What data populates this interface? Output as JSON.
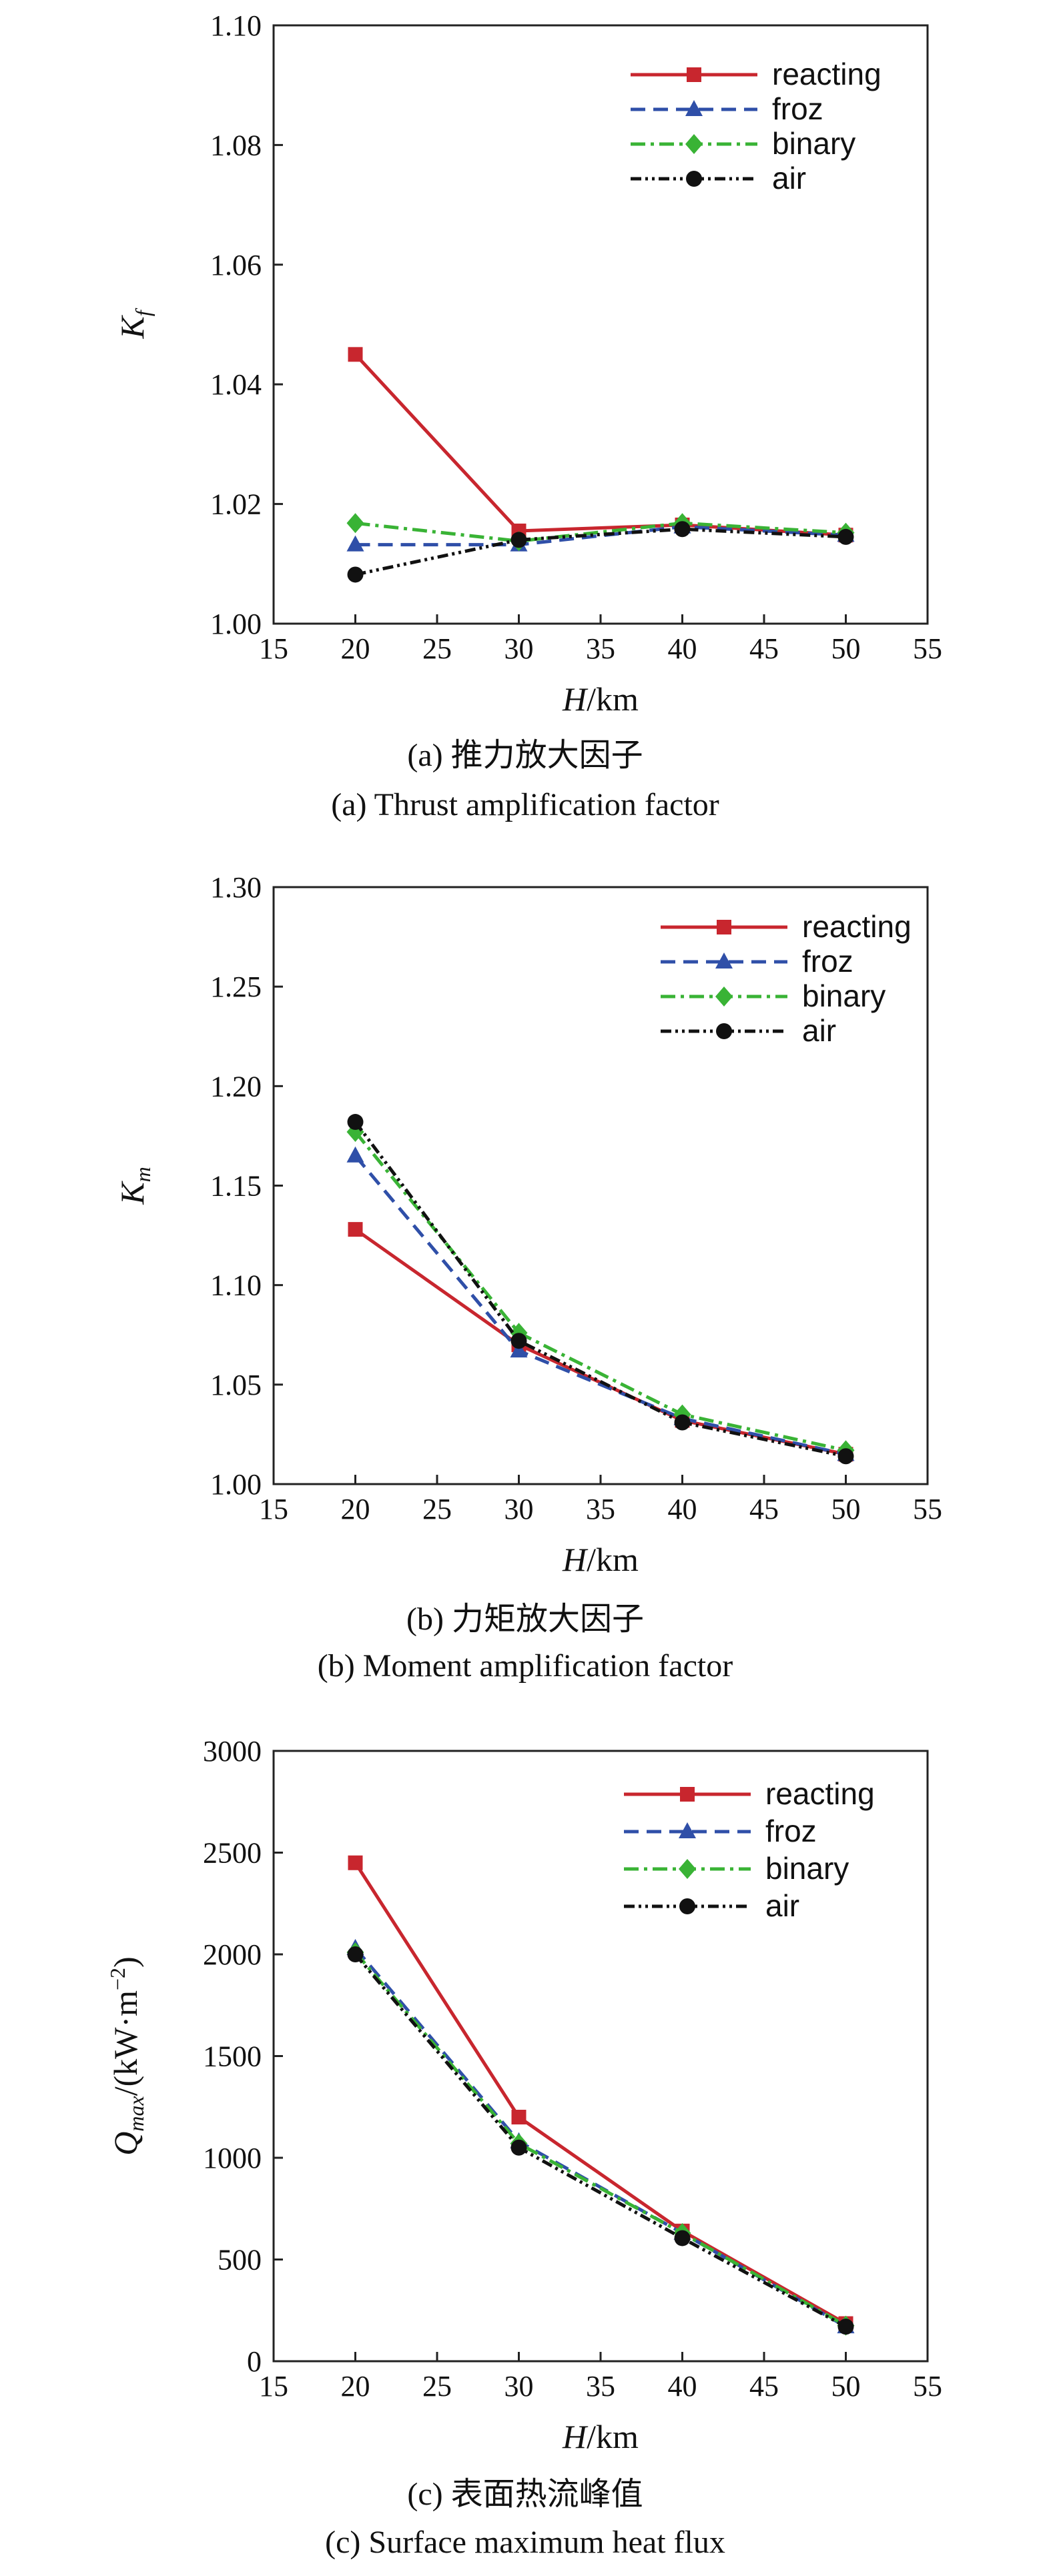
{
  "chart_data": [
    {
      "type": "line",
      "panel": "a",
      "ylabel_main": "K",
      "ylabel_sub": "f",
      "xlabel_main": "H",
      "xlabel_unit": "/km",
      "xlim": [
        15,
        55
      ],
      "ylim": [
        1.0,
        1.1
      ],
      "xticks": [
        "15",
        "20",
        "25",
        "30",
        "35",
        "40",
        "45",
        "50",
        "55"
      ],
      "yticks": [
        "1.00",
        "1.02",
        "1.04",
        "1.06",
        "1.08",
        "1.10"
      ],
      "caption_cn": "(a) 推力放大因子",
      "caption_en": "(a) Thrust amplification factor",
      "x": [
        20,
        30,
        40,
        50
      ],
      "series": [
        {
          "name": "reacting",
          "values": [
            1.045,
            1.0155,
            1.0165,
            1.0148
          ]
        },
        {
          "name": "froz",
          "values": [
            1.0132,
            1.0132,
            1.0162,
            1.0148
          ]
        },
        {
          "name": "binary",
          "values": [
            1.0168,
            1.0138,
            1.0168,
            1.0152
          ]
        },
        {
          "name": "air",
          "values": [
            1.0082,
            1.014,
            1.0158,
            1.0145
          ]
        }
      ]
    },
    {
      "type": "line",
      "panel": "b",
      "ylabel_main": "K",
      "ylabel_sub": "m",
      "xlabel_main": "H",
      "xlabel_unit": "/km",
      "xlim": [
        15,
        55
      ],
      "ylim": [
        1.0,
        1.3
      ],
      "xticks": [
        "15",
        "20",
        "25",
        "30",
        "35",
        "40",
        "45",
        "50",
        "55"
      ],
      "yticks": [
        "1.00",
        "1.05",
        "1.10",
        "1.15",
        "1.20",
        "1.25",
        "1.30"
      ],
      "caption_cn": "(b) 力矩放大因子",
      "caption_en": "(b) Moment amplification factor",
      "x": [
        20,
        30,
        40,
        50
      ],
      "series": [
        {
          "name": "reacting",
          "values": [
            1.128,
            1.07,
            1.032,
            1.015
          ]
        },
        {
          "name": "froz",
          "values": [
            1.165,
            1.067,
            1.033,
            1.015
          ]
        },
        {
          "name": "binary",
          "values": [
            1.177,
            1.076,
            1.035,
            1.017
          ]
        },
        {
          "name": "air",
          "values": [
            1.182,
            1.072,
            1.031,
            1.014
          ]
        }
      ]
    },
    {
      "type": "line",
      "panel": "c",
      "ylabel_main": "Q",
      "ylabel_sub": "max",
      "ylabel_unit_pre": "/(kW·m",
      "ylabel_unit_sup": "−2",
      "ylabel_unit_post": ")",
      "xlabel_main": "H",
      "xlabel_unit": "/km",
      "xlim": [
        15,
        55
      ],
      "ylim": [
        0,
        3000
      ],
      "xticks": [
        "15",
        "20",
        "25",
        "30",
        "35",
        "40",
        "45",
        "50",
        "55"
      ],
      "yticks": [
        "0",
        "500",
        "1000",
        "1500",
        "2000",
        "2500",
        "3000"
      ],
      "caption_cn": "(c) 表面热流峰值",
      "caption_en": "(c) Surface maximum heat flux",
      "x": [
        20,
        30,
        40,
        50
      ],
      "series": [
        {
          "name": "reacting",
          "values": [
            2450,
            1200,
            640,
            185
          ]
        },
        {
          "name": "froz",
          "values": [
            2030,
            1080,
            630,
            170
          ]
        },
        {
          "name": "binary",
          "values": [
            2010,
            1070,
            630,
            175
          ]
        },
        {
          "name": "air",
          "values": [
            2000,
            1050,
            605,
            170
          ]
        }
      ]
    }
  ],
  "series_style": {
    "reacting": {
      "color": "#c8262e",
      "marker": "square",
      "dash": ""
    },
    "froz": {
      "color": "#2f4fa8",
      "marker": "triangle",
      "dash": "22,12"
    },
    "binary": {
      "color": "#39b335",
      "marker": "diamond",
      "dash": "22,8,5,8"
    },
    "air": {
      "color": "#111111",
      "marker": "circle",
      "dash": "16,6,4,6,4,6"
    }
  }
}
